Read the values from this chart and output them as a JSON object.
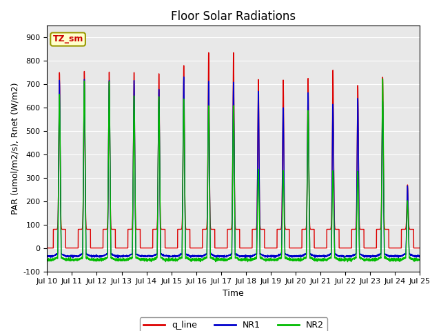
{
  "title": "Floor Solar Radiations",
  "xlabel": "Time",
  "ylabel": "PAR (umol/m2/s), Rnet (W/m2)",
  "ylim": [
    -100,
    950
  ],
  "n_days": 15,
  "legend_entries": [
    "q_line",
    "NR1",
    "NR2"
  ],
  "legend_colors": [
    "#dd0000",
    "#0000cc",
    "#00bb00"
  ],
  "annotation_text": "TZ_sm",
  "annotation_bg": "#ffffcc",
  "annotation_border": "#999900",
  "annotation_text_color": "#cc0000",
  "bg_color": "#e8e8e8",
  "yticks": [
    -100,
    0,
    100,
    200,
    300,
    400,
    500,
    600,
    700,
    800,
    900
  ],
  "line_width": 1.0,
  "xtick_labels": [
    "Jul 10",
    "Jul 11",
    "Jul 12",
    "Jul 13",
    "Jul 14",
    "Jul 15",
    "Jul 16",
    "Jul 17",
    "Jul 18",
    "Jul 19",
    "Jul 20",
    "Jul 21",
    "Jul 22",
    "Jul 23",
    "Jul 24",
    "Jul 25"
  ],
  "q_day_peaks": [
    750,
    755,
    752,
    750,
    745,
    780,
    835,
    835,
    720,
    718,
    725,
    760,
    695,
    730,
    270
  ],
  "nr1_day_peaks": [
    715,
    720,
    718,
    715,
    680,
    730,
    715,
    710,
    670,
    600,
    665,
    615,
    640,
    625,
    265
  ],
  "nr2_day_peaks": [
    660,
    715,
    710,
    648,
    650,
    640,
    610,
    608,
    335,
    330,
    590,
    330,
    330,
    725,
    200
  ],
  "q_day_base": 80,
  "nr1_night_level": -35,
  "nr2_night_level": -50,
  "n_per_day": 240
}
